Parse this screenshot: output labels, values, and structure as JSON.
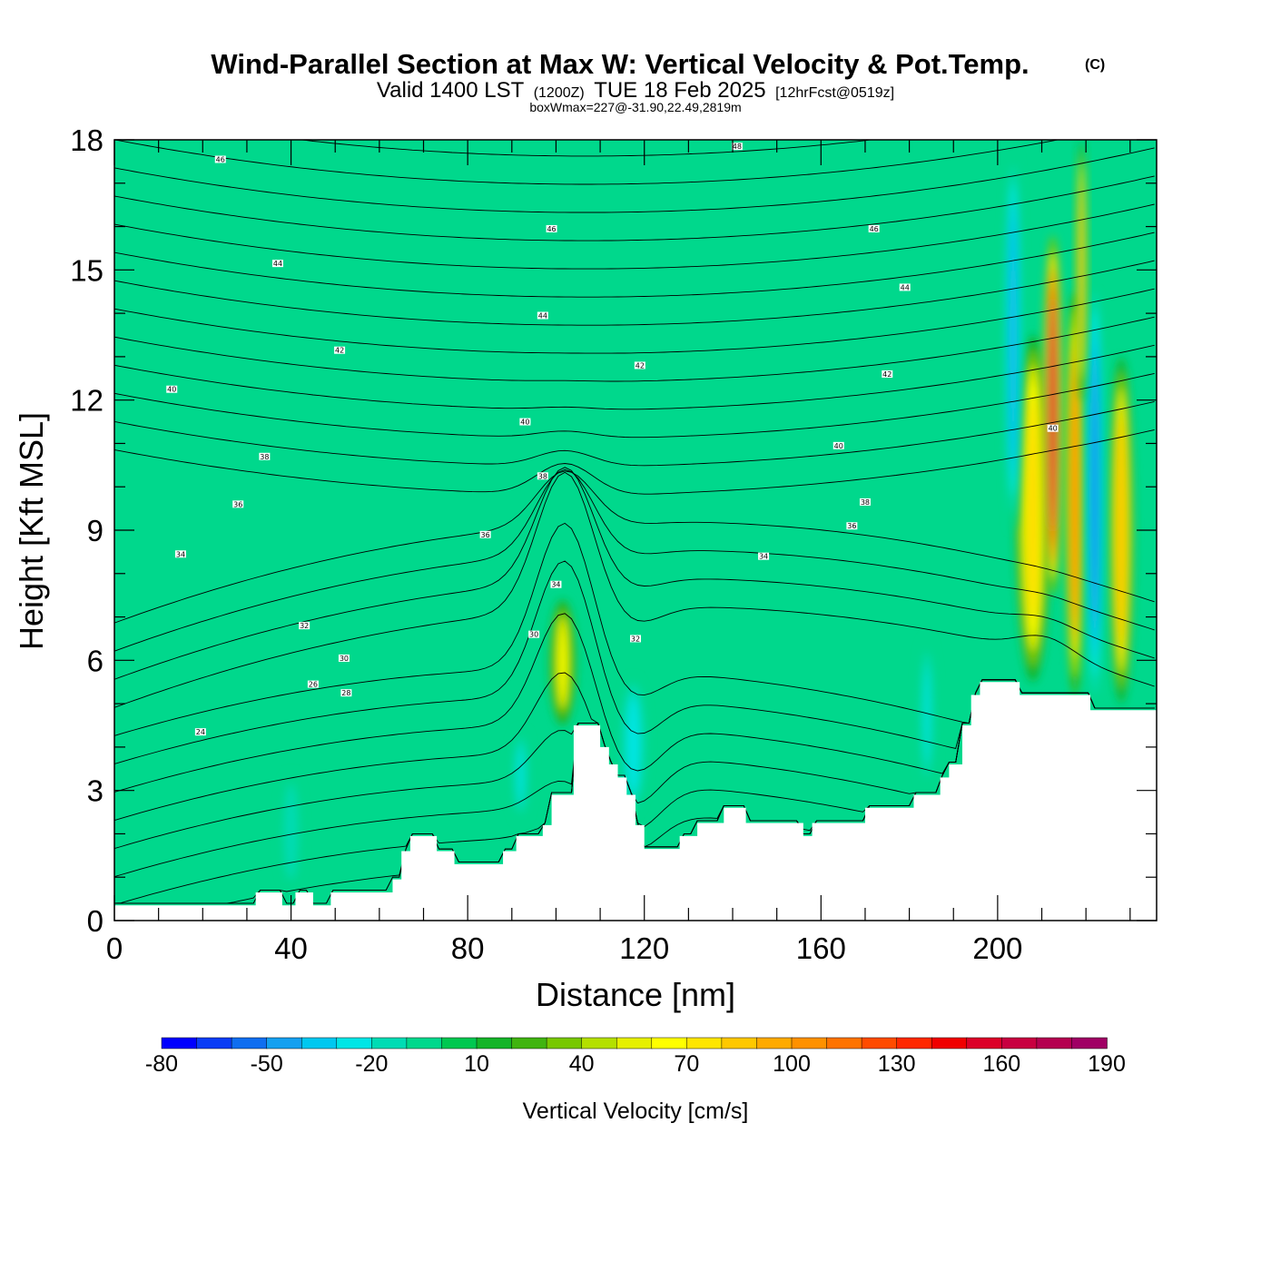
{
  "title": {
    "main": "Wind-Parallel Section at Max W: Vertical Velocity & Pot.Temp.",
    "copyright_mark": "(C)",
    "valid_prefix": "Valid 1400 LST",
    "valid_utc": "(1200Z)",
    "valid_date": "TUE 18 Feb 2025",
    "forecast_info": "[12hrFcst@0519z]",
    "box_info": "boxWmax=227@-31.90,22.49,2819m"
  },
  "chart_data": {
    "type": "contour-section",
    "xlabel": "Distance [nm]",
    "ylabel": "Height [Kft MSL]",
    "xlim": [
      0,
      236
    ],
    "ylim": [
      0,
      18
    ],
    "x_ticks": [
      0,
      40,
      80,
      120,
      160,
      200
    ],
    "y_ticks": [
      0,
      3,
      6,
      9,
      12,
      15,
      18
    ],
    "x_tick_labels": [
      "0",
      "40",
      "80",
      "120",
      "160",
      "200"
    ],
    "y_tick_labels": [
      "0",
      "3",
      "6",
      "9",
      "12",
      "15",
      "18"
    ],
    "colorbar": {
      "title": "Vertical Velocity [cm/s]",
      "levels": [
        -80,
        -70,
        -60,
        -50,
        -40,
        -30,
        -20,
        -10,
        0,
        10,
        20,
        30,
        40,
        50,
        60,
        70,
        80,
        90,
        100,
        110,
        120,
        130,
        140,
        150,
        160,
        170,
        180,
        190
      ],
      "tick_labels": [
        "-80",
        "-50",
        "-20",
        "10",
        "40",
        "70",
        "100",
        "130",
        "160",
        "190"
      ],
      "colors": [
        "#0000ff",
        "#0a3cf5",
        "#0f6ef0",
        "#14a0f0",
        "#00c8f0",
        "#00e6e6",
        "#00dcb4",
        "#00d88c",
        "#00c850",
        "#14b428",
        "#40b410",
        "#78c800",
        "#b4e000",
        "#e6f000",
        "#ffff00",
        "#ffe600",
        "#ffc800",
        "#ffaa00",
        "#ff9100",
        "#ff7300",
        "#ff4b00",
        "#ff2800",
        "#f00000",
        "#dc0028",
        "#c80040",
        "#b40050",
        "#a00064"
      ]
    },
    "background_color": "#00d88c",
    "terrain": [
      [
        0,
        0.35
      ],
      [
        32,
        0.35
      ],
      [
        32,
        0.65
      ],
      [
        38,
        0.65
      ],
      [
        38,
        0.35
      ],
      [
        41,
        0.35
      ],
      [
        41,
        0.65
      ],
      [
        45,
        0.65
      ],
      [
        45,
        0.35
      ],
      [
        49,
        0.35
      ],
      [
        49,
        0.65
      ],
      [
        63,
        0.65
      ],
      [
        63,
        0.95
      ],
      [
        65,
        0.95
      ],
      [
        65,
        1.6
      ],
      [
        67,
        1.6
      ],
      [
        67,
        1.95
      ],
      [
        73,
        1.95
      ],
      [
        73,
        1.6
      ],
      [
        77,
        1.6
      ],
      [
        77,
        1.3
      ],
      [
        88,
        1.3
      ],
      [
        88,
        1.6
      ],
      [
        91,
        1.6
      ],
      [
        91,
        1.95
      ],
      [
        97,
        1.95
      ],
      [
        97,
        2.2
      ],
      [
        99,
        2.2
      ],
      [
        99,
        2.9
      ],
      [
        104,
        2.9
      ],
      [
        104,
        4.5
      ],
      [
        110,
        4.5
      ],
      [
        110,
        4.0
      ],
      [
        112,
        4.0
      ],
      [
        112,
        3.6
      ],
      [
        114,
        3.6
      ],
      [
        114,
        3.3
      ],
      [
        116,
        3.3
      ],
      [
        116,
        2.9
      ],
      [
        118,
        2.9
      ],
      [
        118,
        2.2
      ],
      [
        120,
        2.2
      ],
      [
        120,
        1.65
      ],
      [
        128,
        1.65
      ],
      [
        128,
        1.95
      ],
      [
        132,
        1.95
      ],
      [
        132,
        2.25
      ],
      [
        138,
        2.25
      ],
      [
        138,
        2.6
      ],
      [
        143,
        2.6
      ],
      [
        143,
        2.25
      ],
      [
        156,
        2.25
      ],
      [
        156,
        1.95
      ],
      [
        158,
        1.95
      ],
      [
        158,
        2.25
      ],
      [
        170,
        2.25
      ],
      [
        170,
        2.6
      ],
      [
        181,
        2.6
      ],
      [
        181,
        2.9
      ],
      [
        187,
        2.9
      ],
      [
        187,
        3.3
      ],
      [
        189,
        3.3
      ],
      [
        189,
        3.6
      ],
      [
        192,
        3.6
      ],
      [
        192,
        4.5
      ],
      [
        194,
        4.5
      ],
      [
        194,
        5.2
      ],
      [
        196,
        5.2
      ],
      [
        196,
        5.5
      ],
      [
        205,
        5.5
      ],
      [
        205,
        5.2
      ],
      [
        221,
        5.2
      ],
      [
        221,
        4.85
      ],
      [
        236,
        4.85
      ]
    ],
    "updrafts": [
      {
        "x": 101.5,
        "z_base": 4.5,
        "z_top": 7.4,
        "half_width": 3.0,
        "w_max": 65
      },
      {
        "x": 117.5,
        "z_base": 2.5,
        "z_top": 5.6,
        "half_width": 3.2,
        "w_max": -28
      },
      {
        "x": 40,
        "z_base": 0.7,
        "z_top": 3.4,
        "half_width": 2.5,
        "w_max": -18
      },
      {
        "x": 92,
        "z_base": 2.3,
        "z_top": 4.4,
        "half_width": 2.5,
        "w_max": -22
      },
      {
        "x": 184,
        "z_base": 3.0,
        "z_top": 6.5,
        "half_width": 2.2,
        "w_max": -22
      },
      {
        "x": 208,
        "z_base": 5.5,
        "z_top": 13.5,
        "half_width": 4.0,
        "w_max": 85
      },
      {
        "x": 212.5,
        "z_base": 7.5,
        "z_top": 15.8,
        "half_width": 2.2,
        "w_max": 175
      },
      {
        "x": 217.5,
        "z_base": 5.2,
        "z_top": 14.5,
        "half_width": 2.2,
        "w_max": 120
      },
      {
        "x": 228,
        "z_base": 5.0,
        "z_top": 13.0,
        "half_width": 2.8,
        "w_max": 95
      },
      {
        "x": 203.5,
        "z_base": 9.0,
        "z_top": 17.8,
        "half_width": 2.2,
        "w_max": -45
      },
      {
        "x": 222,
        "z_base": 5.2,
        "z_top": 14.5,
        "half_width": 2.0,
        "w_max": -60
      },
      {
        "x": 219,
        "z_base": 12,
        "z_top": 18,
        "half_width": 1.2,
        "w_max": 90
      }
    ],
    "isentropes": {
      "levels": [
        22,
        23,
        24,
        25,
        26,
        27,
        28,
        29,
        30,
        31,
        32,
        33,
        34,
        35,
        36,
        37,
        38,
        39,
        40,
        41,
        42,
        43,
        44,
        45,
        46,
        47,
        48,
        49
      ],
      "labels": [
        {
          "value": "24",
          "x": 19.5,
          "z": 4.35
        },
        {
          "value": "26",
          "x": 45,
          "z": 5.45
        },
        {
          "value": "28",
          "x": 52.5,
          "z": 5.25
        },
        {
          "value": "30",
          "x": 52,
          "z": 6.05
        },
        {
          "value": "32",
          "x": 43,
          "z": 6.8
        },
        {
          "value": "30",
          "x": 95,
          "z": 6.6
        },
        {
          "value": "34",
          "x": 15,
          "z": 8.45
        },
        {
          "value": "34",
          "x": 100,
          "z": 7.75
        },
        {
          "value": "32",
          "x": 118,
          "z": 6.5
        },
        {
          "value": "36",
          "x": 28,
          "z": 9.6
        },
        {
          "value": "36",
          "x": 84,
          "z": 8.9
        },
        {
          "value": "34",
          "x": 147,
          "z": 8.4
        },
        {
          "value": "36",
          "x": 167,
          "z": 9.1
        },
        {
          "value": "38",
          "x": 34,
          "z": 10.7
        },
        {
          "value": "38",
          "x": 97,
          "z": 10.25
        },
        {
          "value": "38",
          "x": 170,
          "z": 9.65
        },
        {
          "value": "40",
          "x": 13,
          "z": 12.25
        },
        {
          "value": "40",
          "x": 93,
          "z": 11.5
        },
        {
          "value": "40",
          "x": 164,
          "z": 10.95
        },
        {
          "value": "40",
          "x": 212.5,
          "z": 11.35
        },
        {
          "value": "42",
          "x": 51,
          "z": 13.15
        },
        {
          "value": "42",
          "x": 119,
          "z": 12.8
        },
        {
          "value": "42",
          "x": 175,
          "z": 12.6
        },
        {
          "value": "44",
          "x": 37,
          "z": 15.15
        },
        {
          "value": "44",
          "x": 97,
          "z": 13.95
        },
        {
          "value": "44",
          "x": 179,
          "z": 14.6
        },
        {
          "value": "46",
          "x": 24,
          "z": 17.55
        },
        {
          "value": "46",
          "x": 99,
          "z": 15.95
        },
        {
          "value": "46",
          "x": 172,
          "z": 15.95
        },
        {
          "value": "48",
          "x": 141,
          "z": 17.85
        }
      ]
    }
  }
}
